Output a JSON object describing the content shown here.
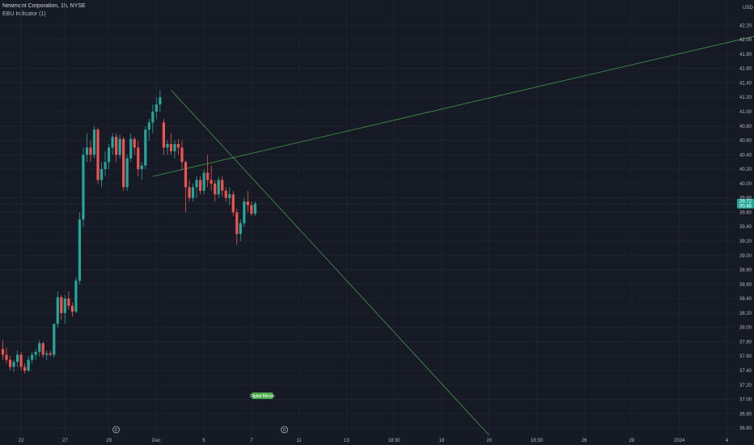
{
  "header": {
    "symbol_line": "Newmont Corporation, 1h, NYSE",
    "indicator_line": "EBU Indicator (1)"
  },
  "currency": "USD",
  "colors": {
    "background": "#161a25",
    "grid": "#1f2330",
    "up": "#26a69a",
    "down": "#ef5350",
    "trendline": "#4caf50",
    "axis_text": "#b2b5be"
  },
  "chart_data": {
    "type": "candlestick",
    "title": "Newmont Corporation, 1h, NYSE",
    "ylim": [
      36.5,
      42.35
    ],
    "y_ticks": [
      "36.60",
      "36.80",
      "37.00",
      "37.20",
      "37.40",
      "37.60",
      "37.80",
      "38.00",
      "38.20",
      "38.40",
      "38.60",
      "38.80",
      "39.00",
      "39.20",
      "39.40",
      "39.60",
      "39.80",
      "40.00",
      "40.20",
      "40.40",
      "40.60",
      "40.80",
      "41.00",
      "41.20",
      "41.40",
      "41.60",
      "41.80",
      "42.00",
      "42.20"
    ],
    "x_labels": [
      {
        "label": "22",
        "bar": 5
      },
      {
        "label": "27",
        "bar": 17
      },
      {
        "label": "29",
        "bar": 29
      },
      {
        "label": "Dec",
        "bar": 42
      },
      {
        "label": "5",
        "bar": 55
      },
      {
        "label": "7",
        "bar": 68
      },
      {
        "label": "11",
        "bar": 81
      },
      {
        "label": "13",
        "bar": 94
      },
      {
        "label": "18:30",
        "bar": 107
      },
      {
        "label": "18",
        "bar": 120
      },
      {
        "label": "20",
        "bar": 133
      },
      {
        "label": "18:30",
        "bar": 146
      },
      {
        "label": "26",
        "bar": 159
      },
      {
        "label": "28",
        "bar": 172
      },
      {
        "label": "2024",
        "bar": 185
      },
      {
        "label": "4",
        "bar": 198
      },
      {
        "label": "8",
        "bar": 211
      }
    ],
    "last_price": "39.72",
    "price_labels": [
      "39.72",
      "00:46"
    ],
    "candles": [
      [
        37.7,
        37.82,
        37.55,
        37.62
      ],
      [
        37.62,
        37.72,
        37.5,
        37.55
      ],
      [
        37.55,
        37.6,
        37.4,
        37.45
      ],
      [
        37.45,
        37.55,
        37.38,
        37.52
      ],
      [
        37.52,
        37.68,
        37.45,
        37.62
      ],
      [
        37.62,
        37.66,
        37.4,
        37.45
      ],
      [
        37.45,
        37.5,
        37.36,
        37.4
      ],
      [
        37.4,
        37.6,
        37.38,
        37.55
      ],
      [
        37.55,
        37.66,
        37.5,
        37.62
      ],
      [
        37.62,
        37.7,
        37.55,
        37.66
      ],
      [
        37.66,
        37.82,
        37.6,
        37.78
      ],
      [
        37.78,
        37.8,
        37.58,
        37.62
      ],
      [
        37.62,
        37.68,
        37.55,
        37.64
      ],
      [
        37.64,
        37.68,
        37.6,
        37.62
      ],
      [
        37.62,
        38.0,
        37.58,
        38.05
      ],
      [
        38.05,
        38.5,
        38.0,
        38.42
      ],
      [
        38.42,
        38.45,
        38.1,
        38.2
      ],
      [
        38.2,
        38.45,
        38.05,
        38.4
      ],
      [
        38.4,
        38.5,
        38.25,
        38.3
      ],
      [
        38.3,
        38.35,
        38.15,
        38.22
      ],
      [
        38.22,
        38.7,
        38.2,
        38.65
      ],
      [
        38.65,
        39.6,
        38.6,
        39.5
      ],
      [
        39.5,
        40.5,
        39.4,
        40.4
      ],
      [
        40.4,
        40.7,
        40.3,
        40.5
      ],
      [
        40.5,
        40.6,
        40.3,
        40.4
      ],
      [
        40.4,
        40.8,
        40.35,
        40.75
      ],
      [
        40.75,
        40.78,
        40.0,
        40.05
      ],
      [
        40.05,
        40.3,
        39.95,
        40.2
      ],
      [
        40.2,
        40.45,
        40.1,
        40.3
      ],
      [
        40.3,
        40.55,
        40.2,
        40.5
      ],
      [
        40.5,
        40.7,
        40.4,
        40.65
      ],
      [
        40.65,
        40.7,
        40.3,
        40.4
      ],
      [
        40.4,
        40.68,
        40.35,
        40.62
      ],
      [
        40.62,
        40.65,
        39.9,
        39.95
      ],
      [
        39.95,
        40.4,
        39.9,
        40.35
      ],
      [
        40.35,
        40.7,
        40.3,
        40.62
      ],
      [
        40.62,
        40.65,
        40.4,
        40.5
      ],
      [
        40.5,
        40.6,
        40.1,
        40.2
      ],
      [
        40.2,
        40.3,
        40.05,
        40.25
      ],
      [
        40.25,
        40.8,
        40.2,
        40.75
      ],
      [
        40.75,
        40.9,
        40.6,
        40.85
      ],
      [
        40.85,
        41.1,
        40.7,
        41.0
      ],
      [
        41.0,
        41.2,
        40.9,
        41.1
      ],
      [
        41.1,
        41.3,
        41.0,
        41.2
      ],
      [
        40.85,
        40.9,
        40.4,
        40.5
      ],
      [
        40.5,
        40.6,
        40.4,
        40.55
      ],
      [
        40.55,
        40.7,
        40.4,
        40.45
      ],
      [
        40.45,
        40.6,
        40.35,
        40.55
      ],
      [
        40.55,
        40.62,
        40.4,
        40.5
      ],
      [
        40.5,
        40.6,
        40.2,
        40.3
      ],
      [
        40.3,
        40.32,
        39.6,
        39.95
      ],
      [
        39.95,
        40.05,
        39.75,
        39.8
      ],
      [
        39.8,
        40.0,
        39.75,
        39.95
      ],
      [
        39.95,
        40.1,
        39.8,
        40.05
      ],
      [
        40.05,
        40.1,
        39.85,
        39.9
      ],
      [
        39.9,
        40.2,
        39.85,
        40.15
      ],
      [
        40.15,
        40.4,
        39.95,
        40.05
      ],
      [
        40.05,
        40.25,
        39.9,
        40.0
      ],
      [
        40.0,
        40.05,
        39.75,
        39.85
      ],
      [
        39.85,
        40.1,
        39.8,
        40.05
      ],
      [
        40.05,
        40.1,
        39.82,
        39.9
      ],
      [
        39.9,
        39.95,
        39.75,
        39.8
      ],
      [
        39.8,
        39.95,
        39.7,
        39.85
      ],
      [
        39.85,
        39.9,
        39.55,
        39.6
      ],
      [
        39.6,
        39.65,
        39.15,
        39.3
      ],
      [
        39.3,
        39.5,
        39.2,
        39.45
      ],
      [
        39.45,
        39.8,
        39.4,
        39.75
      ],
      [
        39.75,
        39.9,
        39.6,
        39.7
      ],
      [
        39.7,
        39.75,
        39.55,
        39.58
      ],
      [
        39.58,
        39.75,
        39.55,
        39.72
      ]
    ]
  },
  "trendlines": [
    {
      "from": {
        "bar": 46,
        "price": 41.3
      },
      "to": {
        "bar": 133,
        "price": 36.5
      }
    },
    {
      "from": {
        "bar": 41,
        "price": 40.1
      },
      "to": {
        "bar": 220,
        "price": 42.22
      }
    }
  ],
  "annotations": {
    "badge_text": "Digital Bitcoin",
    "badge_bar": 71,
    "badge_price": 37.05,
    "event_markers": [
      {
        "symbol": "D",
        "bar": 31
      },
      {
        "symbol": "D",
        "bar": 77
      }
    ]
  }
}
